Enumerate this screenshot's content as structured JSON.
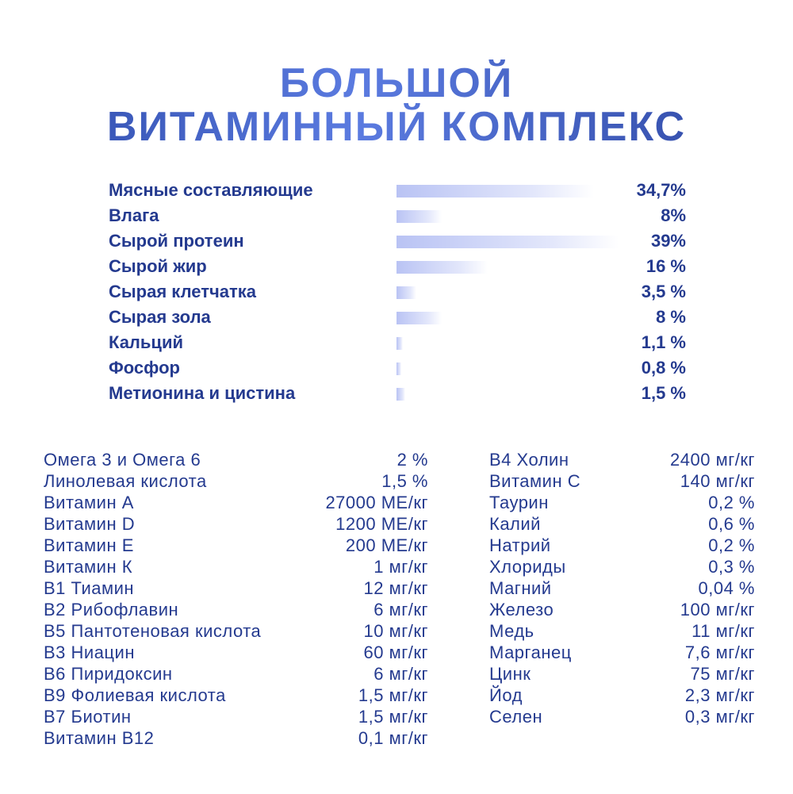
{
  "title": [
    "БОЛЬШОЙ",
    "ВИТАМИННЫЙ КОМПЛЕКС"
  ],
  "composition": [
    {
      "name": "Мясные составляющие",
      "value": 34.7,
      "value_label": "34,7%"
    },
    {
      "name": "Влага",
      "value": 8,
      "value_label": "8%"
    },
    {
      "name": "Сырой протеин",
      "value": 39,
      "value_label": "39%"
    },
    {
      "name": "Сырой жир",
      "value": 16,
      "value_label": "16 %"
    },
    {
      "name": "Сырая клетчатка",
      "value": 3.5,
      "value_label": "3,5 %"
    },
    {
      "name": "Сырая зола",
      "value": 8,
      "value_label": "8 %"
    },
    {
      "name": "Кальций",
      "value": 1.1,
      "value_label": "1,1 %"
    },
    {
      "name": "Фосфор",
      "value": 0.8,
      "value_label": "0,8 %"
    },
    {
      "name": "Метионина и цистина",
      "value": 1.5,
      "value_label": "1,5 %"
    }
  ],
  "nutrients_left": [
    [
      "Омега 3 и Омега 6",
      "2 %"
    ],
    [
      "Линолевая кислота",
      "1,5 %"
    ],
    [
      "Витамин А",
      "27000 МЕ/кг"
    ],
    [
      "Витамин D",
      "1200 МЕ/кг"
    ],
    [
      "Витамин Е",
      "200 МЕ/кг"
    ],
    [
      "Витамин К",
      "1 мг/кг"
    ],
    [
      "В1 Тиамин",
      "12 мг/кг"
    ],
    [
      "В2 Рибофлавин",
      "6 мг/кг"
    ],
    [
      "В5 Пантотеновая кислота",
      "10 мг/кг"
    ],
    [
      "В3 Ниацин",
      "60 мг/кг"
    ],
    [
      "В6 Пиридоксин",
      "6 мг/кг"
    ],
    [
      "В9 Фолиевая кислота",
      "1,5 мг/кг"
    ],
    [
      "В7 Биотин",
      "1,5 мг/кг"
    ],
    [
      "Витамин В12",
      "0,1 мг/кг"
    ]
  ],
  "nutrients_right": [
    [
      "В4 Холин",
      "2400 мг/кг"
    ],
    [
      "Витамин С",
      "140 мг/кг"
    ],
    [
      "Таурин",
      "0,2 %"
    ],
    [
      "Калий",
      "0,6 %"
    ],
    [
      "Натрий",
      "0,2 %"
    ],
    [
      "Хлориды",
      "0,3 %"
    ],
    [
      "Магний",
      "0,04 %"
    ],
    [
      "Железо",
      "100 мг/кг"
    ],
    [
      "Медь",
      "11 мг/кг"
    ],
    [
      "Марганец",
      "7,6 мг/кг"
    ],
    [
      "Цинк",
      "75 мг/кг"
    ],
    [
      "Йод",
      "2,3 мг/кг"
    ],
    [
      "Селен",
      "0,3 мг/кг"
    ]
  ]
}
